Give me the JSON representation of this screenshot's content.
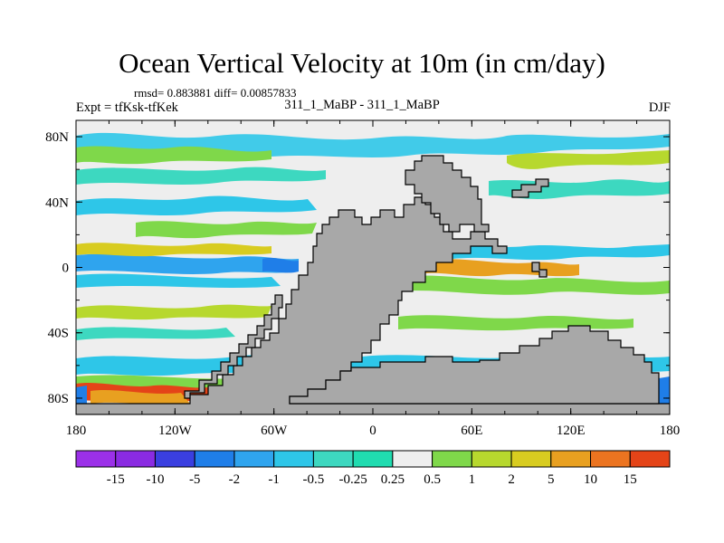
{
  "title": "Ocean Vertical Velocity at 10m (in cm/day)",
  "stats_line": "rmsd= 0.883881 diff= 0.00857833",
  "experiment_label": "Expt = tfKsk-tfKek",
  "center_label": "311_1_MaBP - 311_1_MaBP",
  "season": "DJF",
  "x_ticks": [
    "180",
    "120W",
    "60W",
    "0",
    "60E",
    "120E",
    "180"
  ],
  "y_ticks": [
    "80N",
    "40N",
    "0",
    "40S",
    "80S"
  ],
  "colorbar": {
    "labels": [
      "-15",
      "-10",
      "-5",
      "-2",
      "-1",
      "-0.5",
      "-0.25",
      "0.25",
      "0.5",
      "1",
      "2",
      "5",
      "10",
      "15"
    ],
    "colors": [
      "#8a2be2",
      "#3a3fe0",
      "#1f7ee8",
      "#2fa4ee",
      "#2ec6e8",
      "#3dd8c0",
      "#20dcb0",
      "#eeeeee",
      "#7fd84a",
      "#b7d82e",
      "#d8cc20",
      "#e8a020",
      "#ec7420",
      "#e44418"
    ]
  },
  "palette": {
    "land": "#a8a8a8",
    "ocean_neutral": "#eeeeee",
    "teal": "#3dd8c0",
    "cyan": "#2ec6e8",
    "blue": "#2fa4ee",
    "green": "#7fd84a",
    "yellowgreen": "#b7d82e",
    "orange": "#e8a020",
    "red": "#e44418"
  }
}
